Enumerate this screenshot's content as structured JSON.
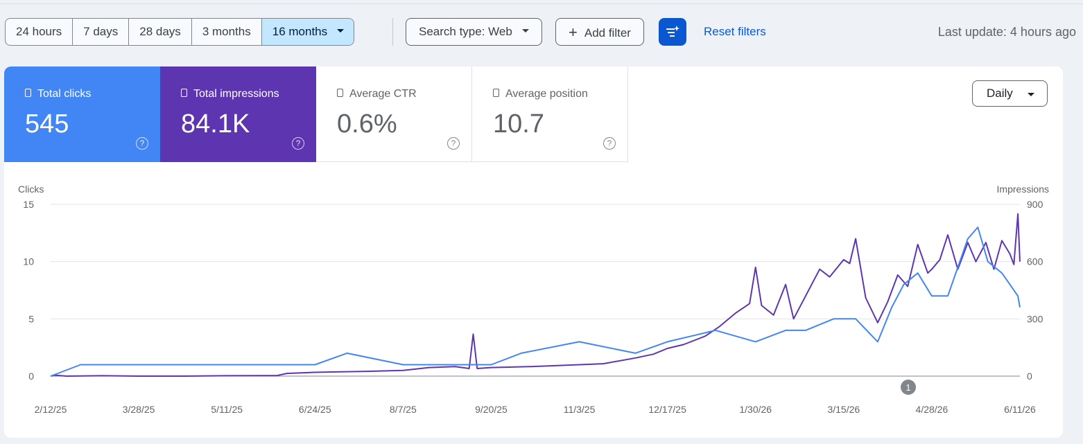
{
  "toolbar": {
    "ranges": [
      "24 hours",
      "7 days",
      "28 days",
      "3 months",
      "16 months"
    ],
    "search_type": "Search type: Web",
    "add_filter": "Add filter",
    "reset": "Reset filters",
    "last_update": "Last update: 4 hours ago"
  },
  "metrics": {
    "clicks": {
      "label": "Total clicks",
      "value": "545",
      "color": "#4285f4"
    },
    "impressions": {
      "label": "Total impressions",
      "value": "84.1K",
      "color": "#5e35b1"
    },
    "ctr": {
      "label": "Average CTR",
      "value": "0.6%"
    },
    "position": {
      "label": "Average position",
      "value": "10.7"
    }
  },
  "granularity": "Daily",
  "annotation_marker": "1",
  "chart_data": {
    "type": "line",
    "x_tick_labels": [
      "2/12/25",
      "3/28/25",
      "5/11/25",
      "6/24/25",
      "8/7/25",
      "9/20/25",
      "11/3/25",
      "12/17/25",
      "1/30/26",
      "3/15/26",
      "4/28/26",
      "6/11/26"
    ],
    "left_axis": {
      "title": "Clicks",
      "ticks": [
        0,
        5,
        10,
        15
      ],
      "range": [
        0,
        15
      ]
    },
    "right_axis": {
      "title": "Impressions",
      "ticks": [
        0,
        300,
        600,
        900
      ],
      "range": [
        0,
        900
      ]
    },
    "x_range": [
      "2/12/25",
      "6/11/26"
    ],
    "series": [
      {
        "name": "Impressions",
        "axis": "right",
        "color": "#5e35b1",
        "points": [
          [
            "2/12/25",
            0
          ],
          [
            "2/14/25",
            5
          ],
          [
            "2/20/25",
            0
          ],
          [
            "3/10/25",
            2
          ],
          [
            "3/28/25",
            0
          ],
          [
            "4/20/25",
            0
          ],
          [
            "5/11/25",
            2
          ],
          [
            "6/5/25",
            3
          ],
          [
            "6/10/25",
            14
          ],
          [
            "6/24/25",
            20
          ],
          [
            "7/5/25",
            22
          ],
          [
            "7/20/25",
            25
          ],
          [
            "8/7/25",
            30
          ],
          [
            "8/20/25",
            45
          ],
          [
            "9/2/25",
            50
          ],
          [
            "9/9/25",
            40
          ],
          [
            "9/11/25",
            220
          ],
          [
            "9/13/25",
            40
          ],
          [
            "9/20/25",
            45
          ],
          [
            "10/10/25",
            50
          ],
          [
            "11/3/25",
            60
          ],
          [
            "11/15/25",
            65
          ],
          [
            "12/1/25",
            95
          ],
          [
            "12/10/25",
            115
          ],
          [
            "12/17/25",
            145
          ],
          [
            "12/25/25",
            165
          ],
          [
            "1/5/26",
            210
          ],
          [
            "1/12/26",
            260
          ],
          [
            "1/20/26",
            330
          ],
          [
            "1/27/26",
            380
          ],
          [
            "1/30/26",
            570
          ],
          [
            "2/2/26",
            370
          ],
          [
            "2/8/26",
            320
          ],
          [
            "2/14/26",
            480
          ],
          [
            "2/18/26",
            300
          ],
          [
            "2/25/26",
            440
          ],
          [
            "3/3/26",
            560
          ],
          [
            "3/8/26",
            520
          ],
          [
            "3/15/26",
            610
          ],
          [
            "3/18/26",
            590
          ],
          [
            "3/21/26",
            720
          ],
          [
            "3/26/26",
            410
          ],
          [
            "4/1/26",
            280
          ],
          [
            "4/6/26",
            390
          ],
          [
            "4/11/26",
            530
          ],
          [
            "4/16/26",
            470
          ],
          [
            "4/21/26",
            690
          ],
          [
            "4/26/26",
            540
          ],
          [
            "4/28/26",
            560
          ],
          [
            "5/2/26",
            610
          ],
          [
            "5/6/26",
            740
          ],
          [
            "5/11/26",
            560
          ],
          [
            "5/16/26",
            700
          ],
          [
            "5/20/26",
            600
          ],
          [
            "5/25/26",
            700
          ],
          [
            "5/29/26",
            560
          ],
          [
            "6/2/26",
            710
          ],
          [
            "6/6/26",
            640
          ],
          [
            "6/8/26",
            585
          ],
          [
            "6/10/26",
            850
          ],
          [
            "6/11/26",
            600
          ]
        ]
      },
      {
        "name": "Clicks",
        "axis": "left",
        "color": "#4285f4",
        "points": [
          [
            "2/12/25",
            0
          ],
          [
            "2/27/25",
            1
          ],
          [
            "3/28/25",
            1
          ],
          [
            "4/9/25",
            1
          ],
          [
            "4/22/25",
            1
          ],
          [
            "6/24/25",
            1
          ],
          [
            "7/10/25",
            2
          ],
          [
            "8/7/25",
            1
          ],
          [
            "8/20/25",
            1
          ],
          [
            "9/20/25",
            1
          ],
          [
            "10/5/25",
            2
          ],
          [
            "11/3/25",
            3
          ],
          [
            "12/1/25",
            2
          ],
          [
            "12/17/25",
            3
          ],
          [
            "1/10/26",
            4
          ],
          [
            "1/30/26",
            3
          ],
          [
            "2/14/26",
            4
          ],
          [
            "2/24/26",
            4
          ],
          [
            "3/10/26",
            5
          ],
          [
            "3/21/26",
            5
          ],
          [
            "4/1/26",
            3
          ],
          [
            "4/8/26",
            6
          ],
          [
            "4/14/26",
            8
          ],
          [
            "4/21/26",
            9
          ],
          [
            "4/28/26",
            7
          ],
          [
            "5/6/26",
            7
          ],
          [
            "5/16/26",
            12
          ],
          [
            "5/21/26",
            13
          ],
          [
            "5/26/26",
            10
          ],
          [
            "6/2/26",
            9
          ],
          [
            "6/6/26",
            8
          ],
          [
            "6/10/26",
            7
          ],
          [
            "6/11/26",
            6
          ]
        ]
      }
    ]
  }
}
